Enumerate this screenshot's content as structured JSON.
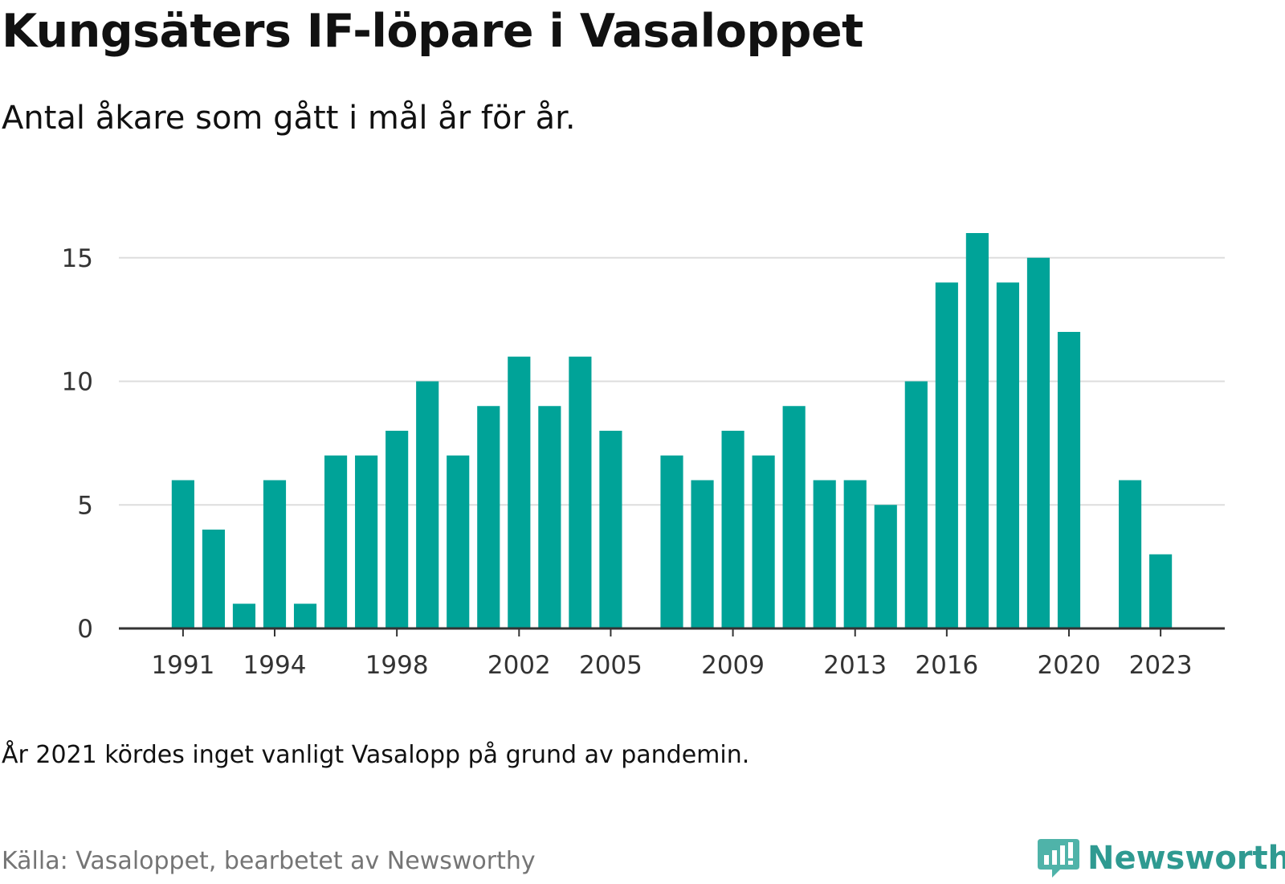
{
  "title": "Kungsäters IF-löpare i Vasaloppet",
  "subtitle": "Antal åkare som gått i mål år för år.",
  "note": "År 2021 kördes inget vanligt Vasalopp på grund av pandemin.",
  "source": "Källa: Vasaloppet, bearbetet av Newsworthy",
  "brand": {
    "name": "Newsworthy",
    "color": "#2f9a91",
    "icon": "chart-bubble-icon"
  },
  "colors": {
    "bar": "#00a398",
    "grid": "#dddddd",
    "axis": "#333333"
  },
  "chart_data": {
    "type": "bar",
    "title": "Kungsäters IF-löpare i Vasaloppet",
    "subtitle": "Antal åkare som gått i mål år för år.",
    "xlabel": "",
    "ylabel": "",
    "x": [
      1991,
      1992,
      1993,
      1994,
      1995,
      1996,
      1997,
      1998,
      1999,
      2000,
      2001,
      2002,
      2003,
      2004,
      2005,
      2006,
      2007,
      2008,
      2009,
      2010,
      2011,
      2012,
      2013,
      2014,
      2015,
      2016,
      2017,
      2018,
      2019,
      2020,
      2021,
      2022,
      2023
    ],
    "values": [
      6,
      4,
      1,
      6,
      1,
      7,
      7,
      8,
      10,
      7,
      9,
      11,
      9,
      11,
      8,
      null,
      7,
      6,
      8,
      7,
      9,
      6,
      6,
      5,
      10,
      14,
      16,
      14,
      15,
      12,
      null,
      6,
      3
    ],
    "xticks": [
      1991,
      1994,
      1998,
      2002,
      2005,
      2009,
      2013,
      2016,
      2020,
      2023
    ],
    "yticks": [
      0,
      5,
      10,
      15
    ],
    "ylim": [
      0,
      16
    ],
    "xlim": [
      1988.9,
      2025.1
    ],
    "grid": true,
    "legend": "none"
  }
}
